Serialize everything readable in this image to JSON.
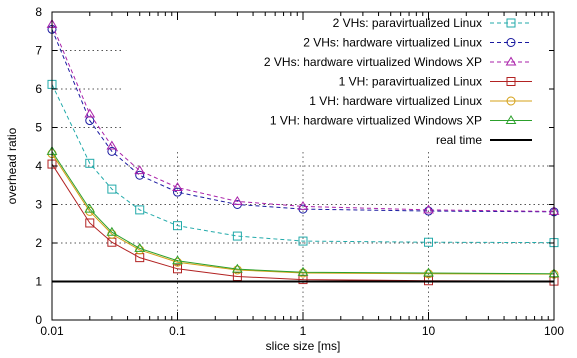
{
  "chart_data": {
    "type": "line",
    "title": "",
    "xlabel": "slice size [ms]",
    "ylabel": "overhead ratio",
    "xscale": "log",
    "xlim": [
      0.01,
      100
    ],
    "ylim": [
      0,
      8
    ],
    "xticks": [
      {
        "value": 0.01,
        "label": "0.01"
      },
      {
        "value": 0.1,
        "label": "0.1"
      },
      {
        "value": 1,
        "label": "1"
      },
      {
        "value": 10,
        "label": "10"
      },
      {
        "value": 100,
        "label": "100"
      }
    ],
    "yticks": [
      {
        "value": 0,
        "label": "0"
      },
      {
        "value": 1,
        "label": "1"
      },
      {
        "value": 2,
        "label": "2"
      },
      {
        "value": 3,
        "label": "3"
      },
      {
        "value": 4,
        "label": "4"
      },
      {
        "value": 5,
        "label": "5"
      },
      {
        "value": 6,
        "label": "6"
      },
      {
        "value": 7,
        "label": "7"
      },
      {
        "value": 8,
        "label": "8"
      }
    ],
    "grid": true,
    "grid_style": "dotted",
    "legend_position": "top-right",
    "series": [
      {
        "name": "2 VHs: paravirtualized Linux",
        "color": "#22aaaa",
        "dash": "dashed",
        "marker": "square",
        "x": [
          0.01,
          0.02,
          0.03,
          0.05,
          0.1,
          0.3,
          1,
          10,
          100
        ],
        "y": [
          6.12,
          4.07,
          3.4,
          2.86,
          2.45,
          2.18,
          2.05,
          2.02,
          2.01
        ]
      },
      {
        "name": "2 VHs: hardware virtualized Linux",
        "color": "#1a1aa0",
        "dash": "dashed",
        "marker": "circle",
        "x": [
          0.01,
          0.02,
          0.03,
          0.05,
          0.1,
          0.3,
          1,
          10,
          100
        ],
        "y": [
          7.55,
          5.18,
          4.38,
          3.76,
          3.32,
          3.0,
          2.88,
          2.83,
          2.81
        ]
      },
      {
        "name": "2 VHs: hardware virtualized Windows XP",
        "color": "#aa22aa",
        "dash": "dashed",
        "marker": "triangle",
        "x": [
          0.01,
          0.02,
          0.03,
          0.05,
          0.1,
          0.3,
          1,
          10,
          100
        ],
        "y": [
          7.68,
          5.35,
          4.52,
          3.88,
          3.44,
          3.08,
          2.95,
          2.86,
          2.82
        ]
      },
      {
        "name": "1 VH: paravirtualized Linux",
        "color": "#b22222",
        "dash": "solid",
        "marker": "square",
        "x": [
          0.01,
          0.02,
          0.03,
          0.05,
          0.1,
          0.3,
          1,
          10,
          100
        ],
        "y": [
          4.05,
          2.52,
          2.02,
          1.62,
          1.33,
          1.13,
          1.05,
          1.02,
          1.01
        ]
      },
      {
        "name": "1 VH: hardware virtualized Linux",
        "color": "#d4a017",
        "dash": "solid",
        "marker": "circle",
        "x": [
          0.01,
          0.02,
          0.03,
          0.05,
          0.1,
          0.3,
          1,
          10,
          100
        ],
        "y": [
          4.32,
          2.82,
          2.23,
          1.82,
          1.5,
          1.3,
          1.22,
          1.2,
          1.19
        ]
      },
      {
        "name": "1 VH: hardware virtualized Windows XP",
        "color": "#2ca02c",
        "dash": "solid",
        "marker": "triangle",
        "x": [
          0.01,
          0.02,
          0.03,
          0.05,
          0.1,
          0.3,
          1,
          10,
          100
        ],
        "y": [
          4.38,
          2.88,
          2.28,
          1.86,
          1.54,
          1.32,
          1.24,
          1.22,
          1.2
        ]
      },
      {
        "name": "real time",
        "color": "#000000",
        "dash": "solid",
        "marker": "none",
        "linewidth": 2,
        "x": [
          0.01,
          100
        ],
        "y": [
          1,
          1
        ]
      }
    ]
  }
}
